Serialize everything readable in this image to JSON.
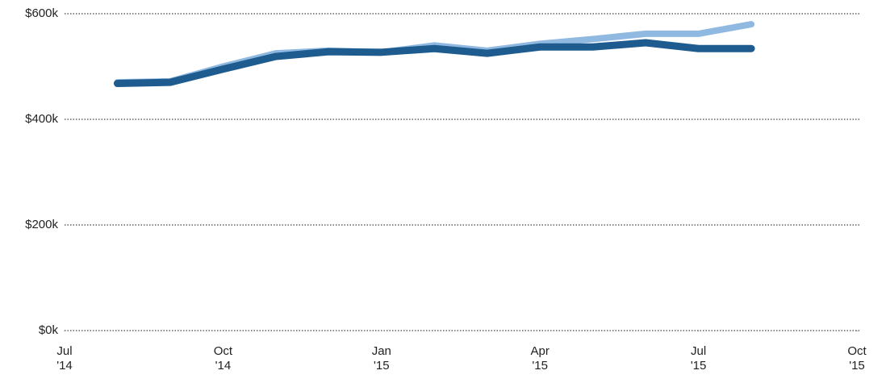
{
  "chart_data": {
    "type": "line",
    "x": [
      "2014-08",
      "2014-09",
      "2014-10",
      "2014-11",
      "2014-12",
      "2015-01",
      "2015-02",
      "2015-03",
      "2015-04",
      "2015-05",
      "2015-06",
      "2015-07",
      "2015-08"
    ],
    "series": [
      {
        "color": "#8fb9e0",
        "values": [
          470000,
          472000,
          500000,
          525000,
          530000,
          527000,
          540000,
          530000,
          543000,
          552000,
          562000,
          562000,
          580000
        ]
      },
      {
        "color": "#1e5b8e",
        "values": [
          468000,
          470000,
          495000,
          519000,
          528000,
          527000,
          534000,
          525000,
          537000,
          537000,
          545000,
          534000,
          534000
        ]
      }
    ],
    "xlim": [
      "2014-07",
      "2015-10"
    ],
    "xticks": [
      {
        "value": "2014-07",
        "label": "Jul\n'14"
      },
      {
        "value": "2014-10",
        "label": "Oct\n'14"
      },
      {
        "value": "2015-01",
        "label": "Jan\n'15"
      },
      {
        "value": "2015-04",
        "label": "Apr\n'15"
      },
      {
        "value": "2015-07",
        "label": "Jul\n'15"
      },
      {
        "value": "2015-10",
        "label": "Oct\n'15"
      }
    ],
    "ylim": [
      0,
      600000
    ],
    "yticks": [
      {
        "value": 0,
        "label": "$0k"
      },
      {
        "value": 200000,
        "label": "$200k"
      },
      {
        "value": 400000,
        "label": "$400k"
      },
      {
        "value": 600000,
        "label": "$600k"
      }
    ],
    "grid": true
  }
}
